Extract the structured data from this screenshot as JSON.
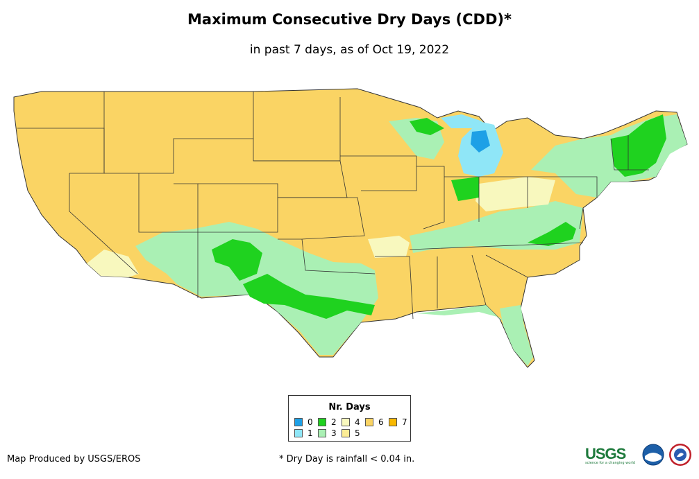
{
  "title": "Maximum Consecutive Dry Days (CDD)*",
  "subtitle": "in past 7 days, as of Oct 19, 2022",
  "legend": {
    "title": "Nr. Days",
    "items": [
      {
        "label": "0",
        "color": "#1ea0e6"
      },
      {
        "label": "1",
        "color": "#8fe6f7"
      },
      {
        "label": "2",
        "color": "#1fd21f"
      },
      {
        "label": "3",
        "color": "#aaf0b4"
      },
      {
        "label": "4",
        "color": "#f8f8be"
      },
      {
        "label": "5",
        "color": "#fcec96"
      },
      {
        "label": "6",
        "color": "#fad464"
      },
      {
        "label": "7",
        "color": "#f8b800"
      }
    ]
  },
  "footer": {
    "credit": "Map Produced by USGS/EROS",
    "note": "* Dry Day is rainfall < 0.04 in."
  },
  "logos": {
    "usgs": "USGS",
    "usgs_tagline": "science for a changing world",
    "noaa": "noaa-logo-icon",
    "nws": "nws-logo-icon"
  }
}
